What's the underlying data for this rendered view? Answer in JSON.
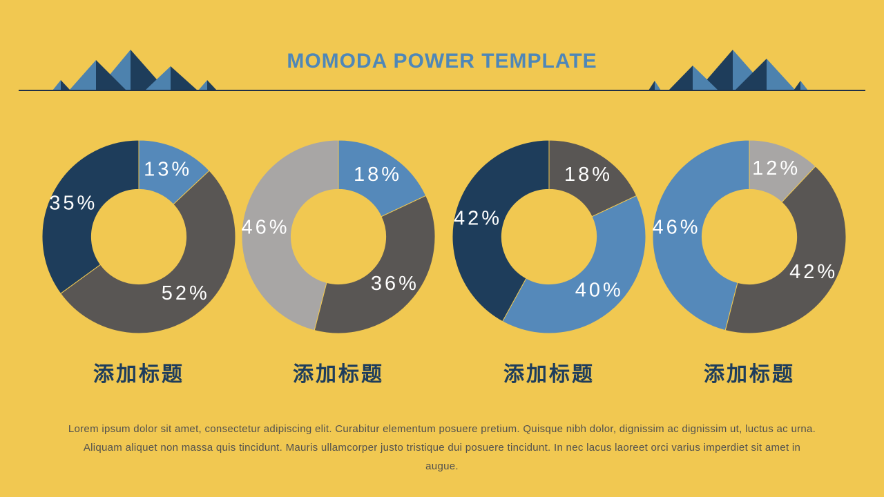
{
  "slide": {
    "background_color": "#f1c851",
    "divider_color": "#1f3048",
    "body_text": "Lorem ipsum dolor sit amet, consectetur adipiscing elit. Curabitur elementum posuere pretium. Quisque nibh dolor, dignissim ac dignissim ut, luctus ac urna. Aliquam aliquet non massa quis tincidunt. Mauris ullamcorper justo tristique dui posuere tincidunt. In nec lacus laoreet orci varius imperdiet sit amet in augue.",
    "body_text_color": "#51504e"
  },
  "header": {
    "title": "MOMODA POWER TEMPLATE",
    "title_color": "#4e87b8",
    "decorations": {
      "left_icon": "mountain-range-icon",
      "right_icon": "mountain-range-icon",
      "mountain_blue": "#4d82ae",
      "mountain_navy": "#1e3d5b"
    }
  },
  "palette": {
    "navy": "#1e3d5b",
    "blue": "#5589ba",
    "gray_dark": "#595654",
    "gray_light": "#a8a6a5",
    "percent_label_color": "#ffffff"
  },
  "chart_data": [
    {
      "type": "pie",
      "subtype": "donut",
      "title": "添加标题",
      "start_angle_deg": 0,
      "direction": "clockwise",
      "inner_radius_ratio": 0.49,
      "legend": "none",
      "slices": [
        {
          "label": "13%",
          "value": 13,
          "color": "#5589ba"
        },
        {
          "label": "52%",
          "value": 52,
          "color": "#595654"
        },
        {
          "label": "35%",
          "value": 35,
          "color": "#1e3d5b"
        }
      ]
    },
    {
      "type": "pie",
      "subtype": "donut",
      "title": "添加标题",
      "start_angle_deg": 0,
      "direction": "clockwise",
      "inner_radius_ratio": 0.49,
      "legend": "none",
      "slices": [
        {
          "label": "18%",
          "value": 18,
          "color": "#5589ba"
        },
        {
          "label": "36%",
          "value": 36,
          "color": "#595654"
        },
        {
          "label": "46%",
          "value": 46,
          "color": "#a8a6a5"
        }
      ]
    },
    {
      "type": "pie",
      "subtype": "donut",
      "title": "添加标题",
      "start_angle_deg": 0,
      "direction": "clockwise",
      "inner_radius_ratio": 0.49,
      "legend": "none",
      "slices": [
        {
          "label": "18%",
          "value": 18,
          "color": "#595654"
        },
        {
          "label": "40%",
          "value": 40,
          "color": "#5589ba"
        },
        {
          "label": "42%",
          "value": 42,
          "color": "#1e3d5b"
        }
      ]
    },
    {
      "type": "pie",
      "subtype": "donut",
      "title": "添加标题",
      "start_angle_deg": 0,
      "direction": "clockwise",
      "inner_radius_ratio": 0.49,
      "legend": "none",
      "slices": [
        {
          "label": "12%",
          "value": 12,
          "color": "#a8a6a5"
        },
        {
          "label": "42%",
          "value": 42,
          "color": "#595654"
        },
        {
          "label": "46%",
          "value": 46,
          "color": "#5589ba"
        }
      ]
    }
  ]
}
